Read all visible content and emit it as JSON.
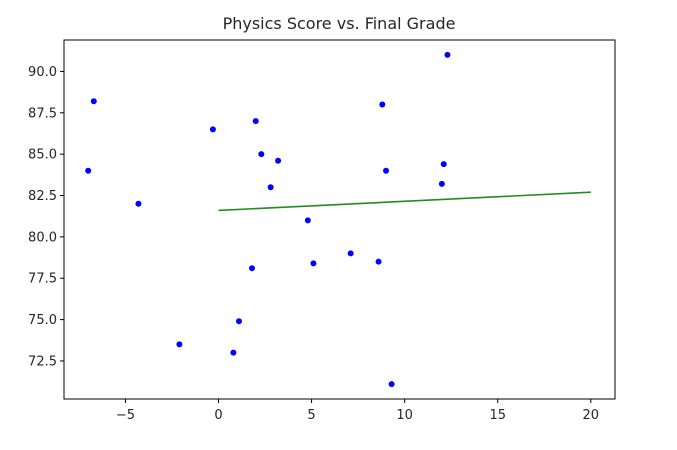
{
  "chart_data": {
    "type": "scatter",
    "title": "Physics Score vs. Final Grade",
    "xlabel": "",
    "ylabel": "",
    "xlim": [
      -8.3,
      21.3
    ],
    "ylim": [
      70.2,
      91.9
    ],
    "grid": false,
    "xticks": [
      -5,
      0,
      5,
      10,
      15,
      20
    ],
    "xtick_labels": [
      "−5",
      "0",
      "5",
      "10",
      "15",
      "20"
    ],
    "yticks": [
      72.5,
      75.0,
      77.5,
      80.0,
      82.5,
      85.0,
      87.5,
      90.0
    ],
    "ytick_labels": [
      "72.5",
      "75.0",
      "77.5",
      "80.0",
      "82.5",
      "85.0",
      "87.5",
      "90.0"
    ],
    "points": {
      "color": "#0000ff",
      "x": [
        -6.7,
        -7.0,
        -4.3,
        -2.1,
        -0.3,
        0.8,
        1.1,
        1.8,
        2.0,
        2.3,
        2.8,
        3.2,
        4.8,
        5.1,
        7.1,
        8.6,
        8.8,
        9.0,
        9.3,
        12.0,
        12.1,
        12.3
      ],
      "y": [
        88.2,
        84.0,
        82.0,
        73.5,
        86.5,
        73.0,
        74.9,
        78.1,
        87.0,
        85.0,
        83.0,
        84.6,
        81.0,
        78.4,
        79.0,
        78.5,
        88.0,
        84.0,
        71.1,
        83.2,
        84.4,
        91.0
      ]
    },
    "fit_line": {
      "color": "#228b22",
      "x": [
        0,
        20
      ],
      "y": [
        81.6,
        82.7
      ]
    }
  }
}
